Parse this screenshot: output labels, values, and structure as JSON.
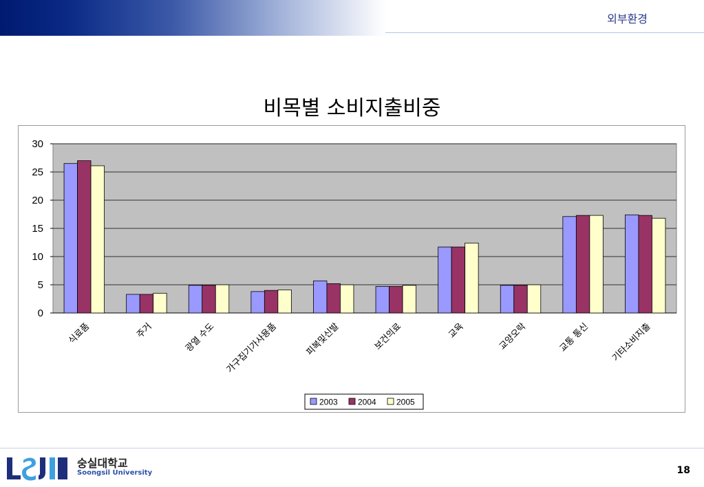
{
  "header": {
    "section": "외부환경"
  },
  "slide": {
    "title": "비목별 소비지출비중"
  },
  "footer": {
    "university_ko": "숭실대학교",
    "university_en": "Soongsil University",
    "page_number": "18"
  },
  "colors": {
    "series": [
      "#9999ff",
      "#993366",
      "#ffffcc"
    ],
    "plot_bg": "#c0c0c0",
    "header_dark": "#001a70"
  },
  "chart_data": {
    "type": "bar",
    "title": "",
    "xlabel": "",
    "ylabel": "",
    "ylim": [
      0,
      30
    ],
    "yticks": [
      0,
      5,
      10,
      15,
      20,
      25,
      30
    ],
    "grid": true,
    "legend_position": "bottom",
    "categories": [
      "식료품",
      "주거",
      "광열 수도",
      "가구집기가사용품",
      "피복및신발",
      "보건의료",
      "교육",
      "교양오락",
      "교통 통신",
      "기타소비지출"
    ],
    "series": [
      {
        "name": "2003",
        "values": [
          26.5,
          3.3,
          4.9,
          3.8,
          5.7,
          4.7,
          11.7,
          4.9,
          17.1,
          17.4
        ]
      },
      {
        "name": "2004",
        "values": [
          27.0,
          3.3,
          4.9,
          4.0,
          5.2,
          4.7,
          11.7,
          4.9,
          17.3,
          17.3
        ]
      },
      {
        "name": "2005",
        "values": [
          26.1,
          3.5,
          5.0,
          4.1,
          5.0,
          4.9,
          12.4,
          5.0,
          17.3,
          16.8
        ]
      }
    ]
  }
}
